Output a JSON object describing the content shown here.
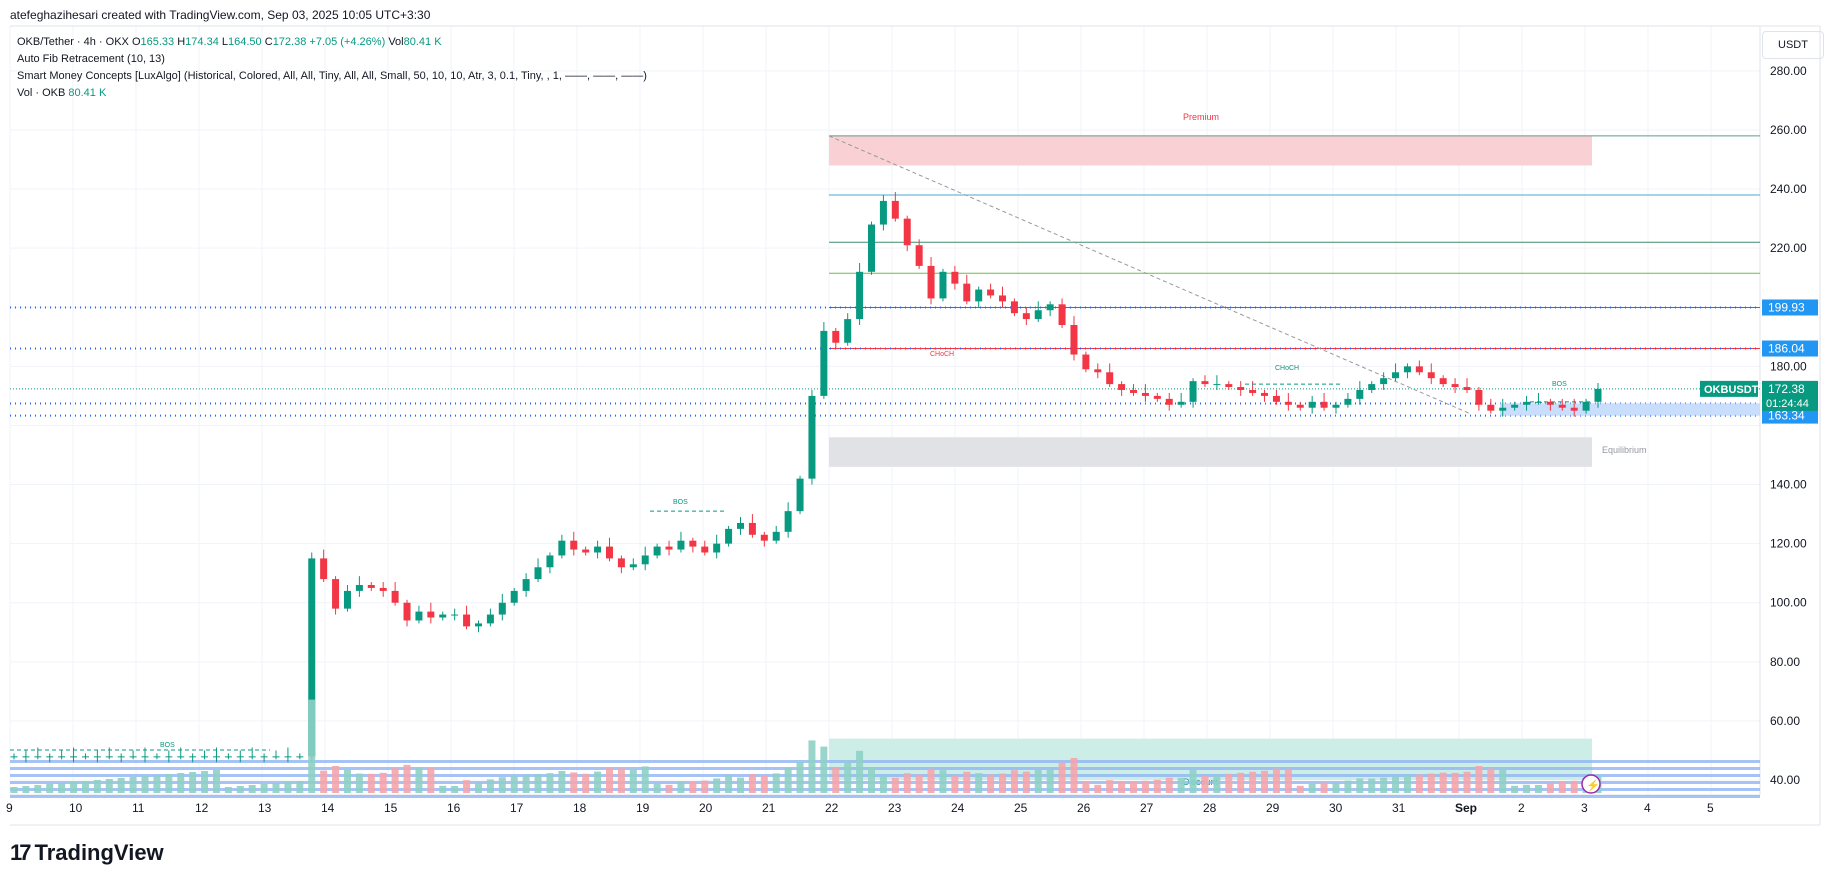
{
  "header": {
    "credit": "atefeghazihesari created with TradingView.com, Sep 03, 2025 10:05 UTC+3:30"
  },
  "legend": {
    "symbol": "OKB/Tether · 4h · OKX",
    "ohlc": {
      "o_label": "O",
      "o": "165.33",
      "h_label": "H",
      "h": "174.34",
      "l_label": "L",
      "l": "164.50",
      "c_label": "C",
      "c": "172.38",
      "chg": "+7.05 (+4.26%)",
      "vol_label": "Vol",
      "vol": "80.41 K"
    },
    "indicators": [
      "Auto Fib Retracement (10, 13)",
      "Smart Money Concepts [LuxAlgo] (Historical, Colored, All, All, Tiny, All, All, Small, 50, 10, 10, Atr, 3, 0.1, Tiny, , 1, ——, ——, ——)"
    ],
    "vol_row": {
      "label": "Vol · OKB",
      "value": "80.41 K"
    }
  },
  "currency_button": "USDT",
  "brand": {
    "logo": "17",
    "name": "TradingView"
  },
  "colors": {
    "up": "#089981",
    "down": "#f23645",
    "up_vol": "#8fd0c5",
    "down_vol": "#f5a5ab",
    "blue": "#2962ff",
    "tag_blue": "#2196f3"
  },
  "chart_data": {
    "type": "candlestick",
    "symbol": "OKBUSDT",
    "ylim": [
      30,
      290
    ],
    "y_ticks": [
      40,
      60,
      80,
      100,
      120,
      140,
      180,
      220,
      240,
      260,
      280
    ],
    "y_tick_labels": [
      "40.00",
      "60.00",
      "80.00",
      "100.00",
      "120.00",
      "140.00",
      "180.00",
      "220.00",
      "240.00",
      "260.00",
      "280.00"
    ],
    "x_ticks": [
      {
        "label": "9",
        "d": 9
      },
      {
        "label": "10",
        "d": 10
      },
      {
        "label": "11",
        "d": 11
      },
      {
        "label": "12",
        "d": 12
      },
      {
        "label": "13",
        "d": 13
      },
      {
        "label": "14",
        "d": 14
      },
      {
        "label": "15",
        "d": 15
      },
      {
        "label": "16",
        "d": 16
      },
      {
        "label": "17",
        "d": 17
      },
      {
        "label": "18",
        "d": 18
      },
      {
        "label": "19",
        "d": 19
      },
      {
        "label": "20",
        "d": 20
      },
      {
        "label": "21",
        "d": 21
      },
      {
        "label": "22",
        "d": 22
      },
      {
        "label": "23",
        "d": 23
      },
      {
        "label": "24",
        "d": 24
      },
      {
        "label": "25",
        "d": 25
      },
      {
        "label": "26",
        "d": 26
      },
      {
        "label": "27",
        "d": 27
      },
      {
        "label": "28",
        "d": 28
      },
      {
        "label": "29",
        "d": 29
      },
      {
        "label": "30",
        "d": 30
      },
      {
        "label": "31",
        "d": 31
      },
      {
        "label": "Sep",
        "d": 32
      },
      {
        "label": "2",
        "d": 33
      },
      {
        "label": "3",
        "d": 34
      },
      {
        "label": "4",
        "d": 35
      },
      {
        "label": "5",
        "d": 36
      }
    ],
    "closes": [
      48,
      48,
      48,
      48,
      48,
      48,
      48,
      48,
      48,
      48,
      48,
      48,
      48,
      48,
      48,
      48,
      48,
      48,
      48,
      48,
      48,
      48,
      48,
      48,
      48,
      115,
      108,
      98,
      104,
      106,
      105,
      104,
      100,
      94,
      97,
      95,
      96,
      96,
      92,
      93,
      96,
      100,
      104,
      108,
      112,
      116,
      121,
      118,
      117,
      119,
      115,
      112,
      113,
      116,
      119,
      118,
      121,
      119,
      117,
      120,
      125,
      127,
      123,
      121,
      124,
      131,
      142,
      170,
      192,
      188,
      196,
      212,
      228,
      236,
      230,
      221,
      214,
      203,
      212,
      208,
      202,
      206,
      204,
      202,
      198,
      196,
      199,
      201,
      194,
      184,
      179,
      178,
      174,
      172,
      171,
      170,
      169,
      167,
      168,
      175,
      174,
      174,
      173,
      172,
      171,
      170,
      168,
      167,
      166,
      168,
      166,
      167,
      169,
      172,
      174,
      176,
      178,
      180,
      178,
      176,
      174,
      173,
      172,
      167,
      165,
      166,
      167,
      168,
      168,
      167,
      166,
      165,
      168,
      172.38
    ],
    "premium_zone": [
      248,
      258
    ],
    "equilibrium_zone": [
      146,
      156
    ],
    "discount_zone": [
      40,
      54
    ],
    "labels": {
      "premium": "Premium",
      "equilibrium": "Equilibrium",
      "discount": "Discount",
      "choch1": "CHoCH",
      "choch2": "CHoCH",
      "bos1": "BOS",
      "bos2": "BOS",
      "bos3": "BOS"
    },
    "fib_levels": [
      258,
      238,
      222,
      211.5,
      199.93,
      186.04
    ],
    "price_tags": [
      {
        "label": "199.93",
        "value": 199.93,
        "color": "#2196f3"
      },
      {
        "label": "186.04",
        "value": 186.04,
        "color": "#2196f3"
      },
      {
        "label": "167.41",
        "value": 167.41,
        "color": "#2196f3"
      },
      {
        "label": "163.34",
        "value": 163.34,
        "color": "#2196f3"
      }
    ],
    "last_price": {
      "symbol": "OKBUSDT",
      "value": "172.38",
      "countdown": "01:24:44"
    }
  }
}
